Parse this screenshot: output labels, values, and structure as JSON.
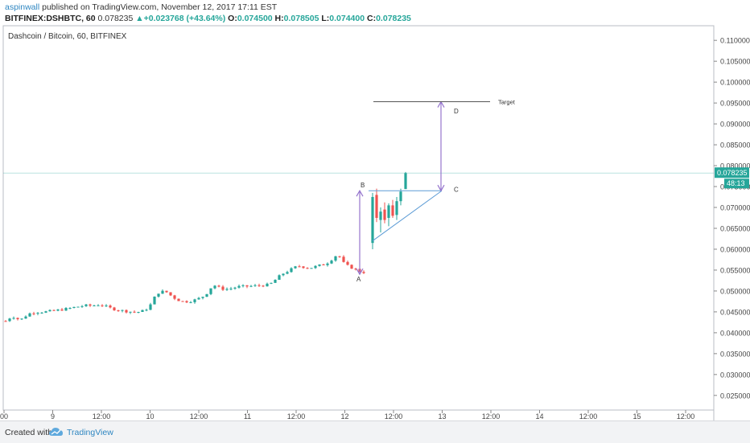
{
  "header": {
    "author": "aspinwall",
    "published_text": "published on TradingView.com, November 12, 2017 17:11 EST",
    "symbol": "BITFINEX:DSHBTC, 60",
    "last": "0.078235",
    "change_arrow": "▲",
    "change": "+0.023768 (+43.64%)",
    "o_label": "O:",
    "o_value": "0.074500",
    "h_label": "H:",
    "h_value": "0.078505",
    "l_label": "L:",
    "l_value": "0.074400",
    "c_label": "C:",
    "c_value": "0.078235"
  },
  "chart_data": {
    "type": "candlestick",
    "title": "Dashcoin / Bitcoin, 60, BITFINEX",
    "ylim": [
      0.0215,
      0.1135
    ],
    "y_ticks": [
      "0.025000",
      "0.030000",
      "0.035000",
      "0.040000",
      "0.045000",
      "0.050000",
      "0.055000",
      "0.060000",
      "0.065000",
      "0.070000",
      "0.075000",
      "0.080000",
      "0.085000",
      "0.090000",
      "0.095000",
      "0.100000",
      "0.105000",
      "0.110000"
    ],
    "x_ticks": [
      "00",
      "9",
      "12:00",
      "10",
      "12:00",
      "11",
      "12:00",
      "12",
      "12:00",
      "13",
      "12:00",
      "14",
      "12:00",
      "15",
      "12:00"
    ],
    "last_price_label": "0.078235",
    "countdown_label": "48:13",
    "last_price": 0.078235,
    "annotations": {
      "A": "A",
      "B": "B",
      "C": "C",
      "D": "D",
      "target": "Target"
    },
    "colors": {
      "up": "#26a69a",
      "down": "#ef5350",
      "annotation": "#9575cd",
      "triangle": "#5b9bd5",
      "target_line": "#555555"
    }
  },
  "footer": {
    "created_with": "Created with",
    "brand": "TradingView"
  }
}
